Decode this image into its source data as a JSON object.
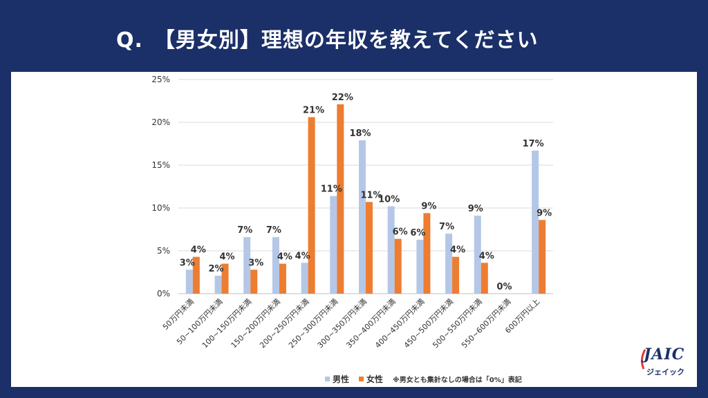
{
  "title": "Q.　【男女別】理想の年収を教えてください",
  "legend": {
    "male": "男性",
    "female": "女性",
    "note": "※男女とも集計なしの場合は「0%」表記"
  },
  "logo": {
    "main": "JAIC",
    "sub": "ジェイック"
  },
  "colors": {
    "male": "#b4c7e7",
    "female": "#ed7d31",
    "header": "#1b3068"
  },
  "chart_data": {
    "type": "bar",
    "ylim": [
      0,
      25
    ],
    "yticks": [
      "0%",
      "5%",
      "10%",
      "15%",
      "20%",
      "25%"
    ],
    "categories": [
      "50万円未満",
      "50~100万円未満",
      "100~150万円未満",
      "150~200万円未満",
      "200~250万円未満",
      "250~300万円未満",
      "300~350万円未満",
      "350~400万円未満",
      "400~450万円未満",
      "450~500万円未満",
      "500~550万円未満",
      "550~600万円未満",
      "600万円以上"
    ],
    "series": [
      {
        "name": "男性",
        "values": [
          2.8,
          2.1,
          6.6,
          6.6,
          3.6,
          11.4,
          17.9,
          10.2,
          6.3,
          7.0,
          9.1,
          0,
          16.7
        ],
        "labels": [
          "3%",
          "2%",
          "7%",
          "7%",
          "4%",
          "11%",
          "18%",
          "10%",
          "6%",
          "7%",
          "9%",
          "0%",
          "17%"
        ]
      },
      {
        "name": "女性",
        "values": [
          4.3,
          3.5,
          2.8,
          3.5,
          20.6,
          22.1,
          10.7,
          6.4,
          9.4,
          4.3,
          3.6,
          0,
          8.6
        ],
        "labels": [
          "4%",
          "4%",
          "3%",
          "4%",
          "21%",
          "22%",
          "11%",
          "6%",
          "9%",
          "4%",
          "4%",
          "",
          "9%"
        ]
      }
    ]
  }
}
